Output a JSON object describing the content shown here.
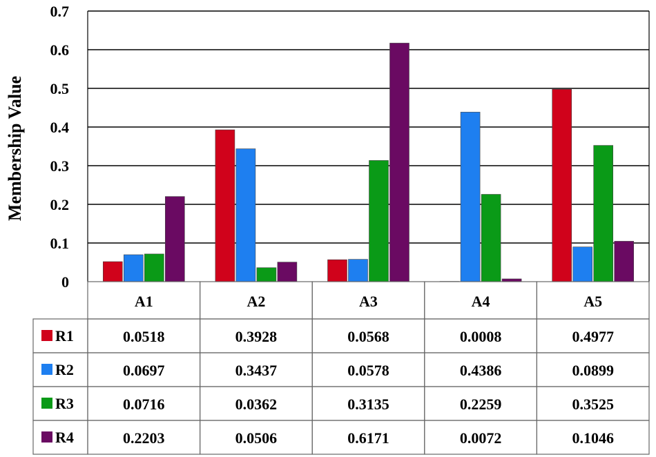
{
  "chart_data": {
    "type": "bar",
    "ylabel": "Membership Value",
    "ylim": [
      0,
      0.7
    ],
    "yticks": [
      "0",
      "0.1",
      "0.2",
      "0.3",
      "0.4",
      "0.5",
      "0.6",
      "0.7"
    ],
    "grid": true,
    "legend": "data-table-left",
    "categories": [
      "A1",
      "A2",
      "A3",
      "A4",
      "A5"
    ],
    "series": [
      {
        "name": "R1",
        "color": "#d0021b",
        "values": [
          0.0518,
          0.3928,
          0.0568,
          0.0008,
          0.4977
        ],
        "labels": [
          "0.0518",
          "0.3928",
          "0.0568",
          "0.0008",
          "0.4977"
        ]
      },
      {
        "name": "R2",
        "color": "#1e7ff0",
        "values": [
          0.0697,
          0.3437,
          0.0578,
          0.4386,
          0.0899
        ],
        "labels": [
          "0.0697",
          "0.3437",
          "0.0578",
          "0.4386",
          "0.0899"
        ]
      },
      {
        "name": "R3",
        "color": "#0a9a17",
        "values": [
          0.0716,
          0.0362,
          0.3135,
          0.2259,
          0.3525
        ],
        "labels": [
          "0.0716",
          "0.0362",
          "0.3135",
          "0.2259",
          "0.3525"
        ]
      },
      {
        "name": "R4",
        "color": "#6a0a62",
        "values": [
          0.2203,
          0.0506,
          0.6171,
          0.0072,
          0.1046
        ],
        "labels": [
          "0.2203",
          "0.0506",
          "0.6171",
          "0.0072",
          "0.1046"
        ]
      }
    ]
  }
}
